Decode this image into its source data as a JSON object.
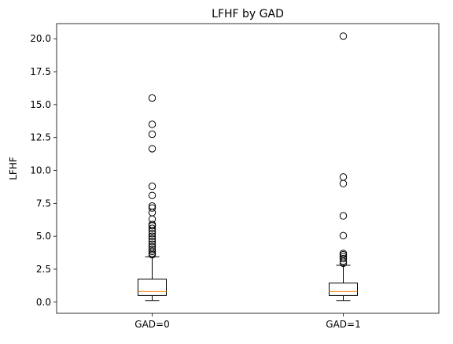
{
  "chart_data": {
    "type": "box",
    "title": "LFHF by GAD",
    "xlabel": "",
    "ylabel": "LFHF",
    "ylim": [
      -0.85,
      21.15
    ],
    "yticks": [
      0.0,
      2.5,
      5.0,
      7.5,
      10.0,
      12.5,
      15.0,
      17.5,
      20.0
    ],
    "ytick_labels": [
      "0.0",
      "2.5",
      "5.0",
      "7.5",
      "10.0",
      "12.5",
      "15.0",
      "17.5",
      "20.0"
    ],
    "categories": [
      "GAD=0",
      "GAD=1"
    ],
    "grid": false,
    "colors": {
      "box": "#000000",
      "median": "#ff7f0e",
      "flier": "#000000",
      "background": "#ffffff"
    },
    "boxes": [
      {
        "category": "GAD=0",
        "whisker_low": 0.12,
        "q1": 0.5,
        "median": 0.8,
        "q3": 1.75,
        "whisker_high": 3.45,
        "fliers": [
          3.6,
          3.7,
          3.85,
          4.0,
          4.2,
          4.4,
          4.6,
          4.8,
          5.0,
          5.2,
          5.4,
          5.6,
          5.8,
          5.9,
          6.3,
          6.8,
          7.15,
          7.3,
          8.1,
          8.8,
          11.65,
          12.75,
          13.5,
          15.5
        ]
      },
      {
        "category": "GAD=1",
        "whisker_low": 0.12,
        "q1": 0.5,
        "median": 0.8,
        "q3": 1.45,
        "whisker_high": 2.8,
        "fliers": [
          2.95,
          3.1,
          3.3,
          3.45,
          3.6,
          3.7,
          5.05,
          6.55,
          9.0,
          9.5,
          20.2
        ]
      }
    ]
  }
}
